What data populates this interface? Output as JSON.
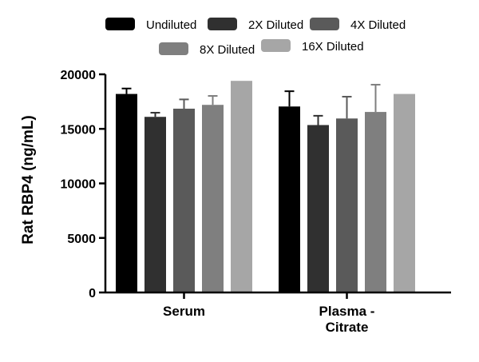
{
  "chart_data": {
    "type": "bar",
    "ylabel": "Rat RBP4 (ng/mL)",
    "xlabel": "",
    "ylim": [
      0,
      20000
    ],
    "yticks": [
      0,
      5000,
      10000,
      15000,
      20000
    ],
    "grid": false,
    "legend_position": "top",
    "categories": [
      [
        "Serum"
      ],
      [
        "Plasma -",
        "Citrate"
      ]
    ],
    "series": [
      {
        "name": "Undiluted",
        "color": "#000000",
        "values": [
          18200,
          17050
        ],
        "errors": [
          500,
          1400
        ]
      },
      {
        "name": "2X Diluted",
        "color": "#303030",
        "values": [
          16100,
          15350
        ],
        "errors": [
          380,
          850
        ]
      },
      {
        "name": "4X Diluted",
        "color": "#5a5a5a",
        "values": [
          16850,
          15950
        ],
        "errors": [
          850,
          2000
        ]
      },
      {
        "name": "8X Diluted",
        "color": "#7f7f7f",
        "values": [
          17200,
          16550
        ],
        "errors": [
          820,
          2500
        ]
      },
      {
        "name": "16X Diluted",
        "color": "#a6a6a6",
        "values": [
          19400,
          18200
        ],
        "errors": [
          0,
          0
        ]
      }
    ]
  }
}
